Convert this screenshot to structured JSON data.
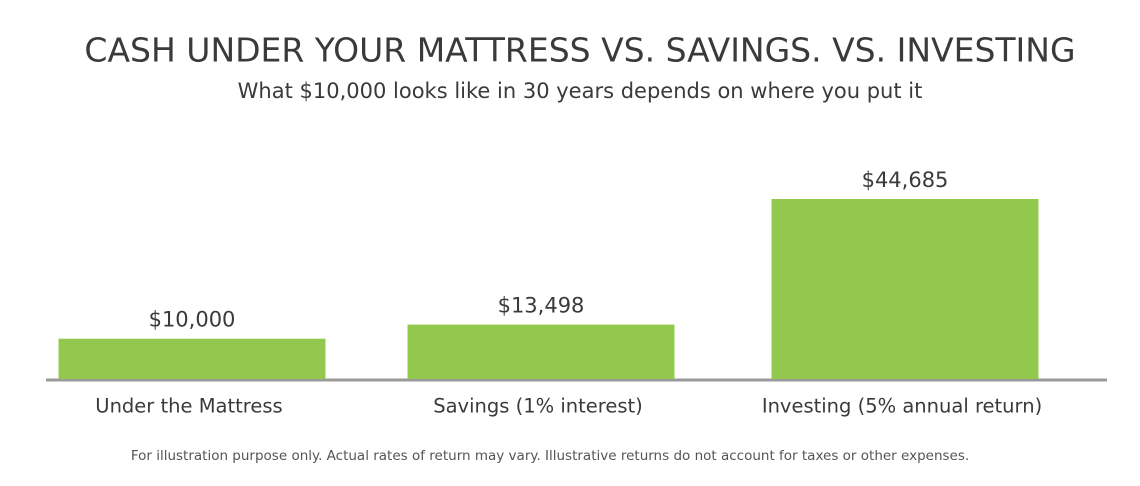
{
  "chart_data": {
    "type": "bar",
    "title": "CASH UNDER YOUR MATTRESS VS. SAVINGS. VS. INVESTING",
    "subtitle": "What $10,000 looks like in 30 years depends on where you put it",
    "categories": [
      "Under the Mattress",
      "Savings (1% interest)",
      "Investing (5% annual return)"
    ],
    "values": [
      10000,
      13498,
      44685
    ],
    "value_labels": [
      "$10,000",
      "$13,498",
      "$44,685"
    ],
    "color": "#92c84d",
    "footnote": "For illustration purpose only. Actual rates of return may vary. Illustrative returns do not account for taxes or other expenses."
  }
}
